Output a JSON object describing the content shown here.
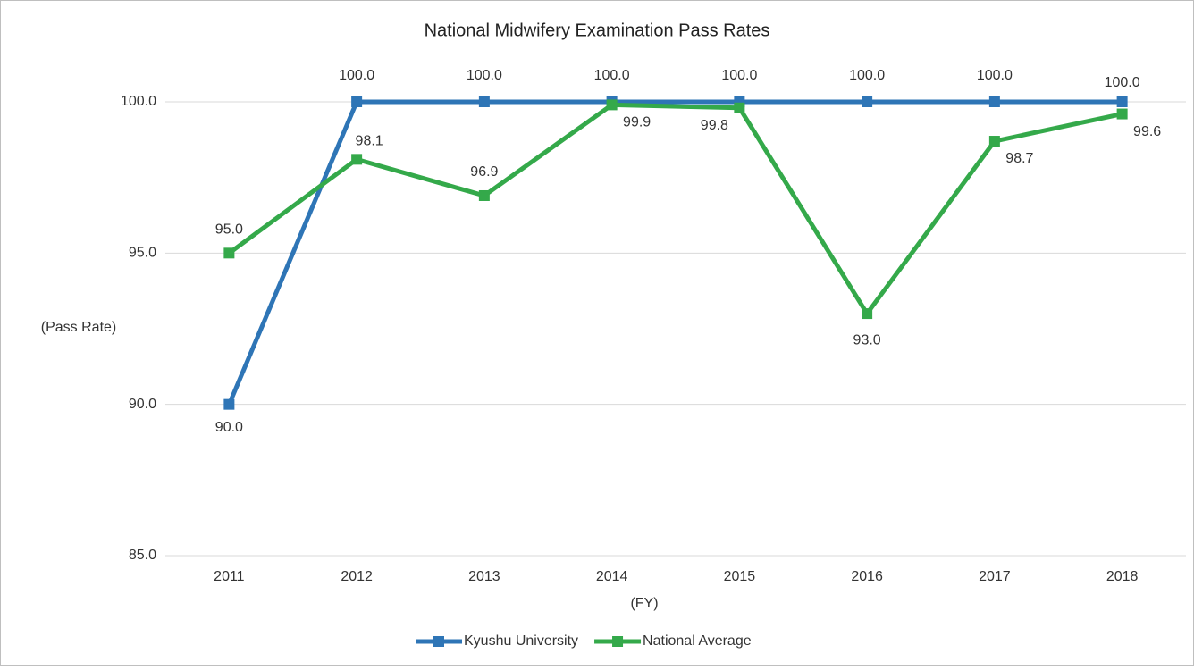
{
  "chart_data": {
    "type": "line",
    "title": "National Midwifery Examination Pass Rates",
    "y_label": "(Pass Rate)",
    "x_label": "(FY)",
    "categories": [
      "2011",
      "2012",
      "2013",
      "2014",
      "2015",
      "2016",
      "2017",
      "2018"
    ],
    "series": [
      {
        "name": "Kyushu University",
        "color": "#2e75b6",
        "values": [
          90,
          100,
          100,
          100,
          100,
          100,
          100,
          100
        ],
        "value_labels": [
          "90.0",
          "100.0",
          "100.0",
          "100.0",
          "100.0",
          "100.0",
          "100.0",
          "100.0"
        ]
      },
      {
        "name": "National Average",
        "color": "#34a94a",
        "values": [
          95,
          98.1,
          96.9,
          99.9,
          99.8,
          93,
          98.7,
          99.6
        ],
        "value_labels": [
          "95.0",
          "98.1",
          "96.9",
          "99.9",
          "99.8",
          "93.0",
          "98.7",
          "99.6"
        ]
      }
    ],
    "ylim": [
      85,
      100
    ],
    "yticks": [
      {
        "value": 85,
        "label": "85.0"
      },
      {
        "value": 90,
        "label": "90.0"
      },
      {
        "value": 95,
        "label": "95.0"
      },
      {
        "value": 100,
        "label": "100.0"
      }
    ],
    "grid": true,
    "legend": "bottom"
  }
}
